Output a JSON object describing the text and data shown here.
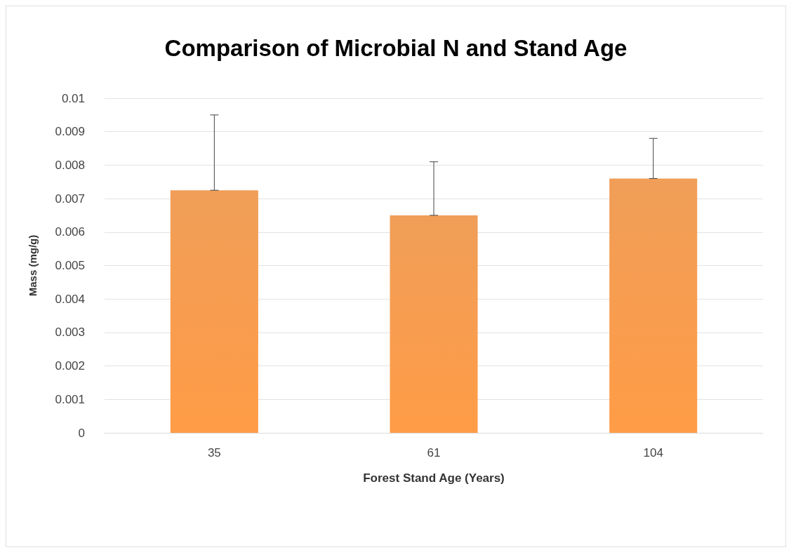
{
  "chart_data": {
    "type": "bar",
    "title": "Comparison of Microbial N and Stand Age",
    "xlabel": "Forest Stand Age (Years)",
    "ylabel": "Mass (mg/g)",
    "categories": [
      "35",
      "61",
      "104"
    ],
    "values": [
      0.00725,
      0.0065,
      0.0076
    ],
    "errors": [
      [
        0.00725,
        0.0095
      ],
      [
        0.0065,
        0.0081
      ],
      [
        0.0076,
        0.0088
      ]
    ],
    "color": "#ee9142",
    "ylim": [
      0,
      0.01
    ],
    "yticks": [
      0,
      0.001,
      0.002,
      0.003,
      0.004,
      0.005,
      0.006,
      0.007,
      0.008,
      0.009,
      0.01
    ],
    "grid": "y"
  }
}
